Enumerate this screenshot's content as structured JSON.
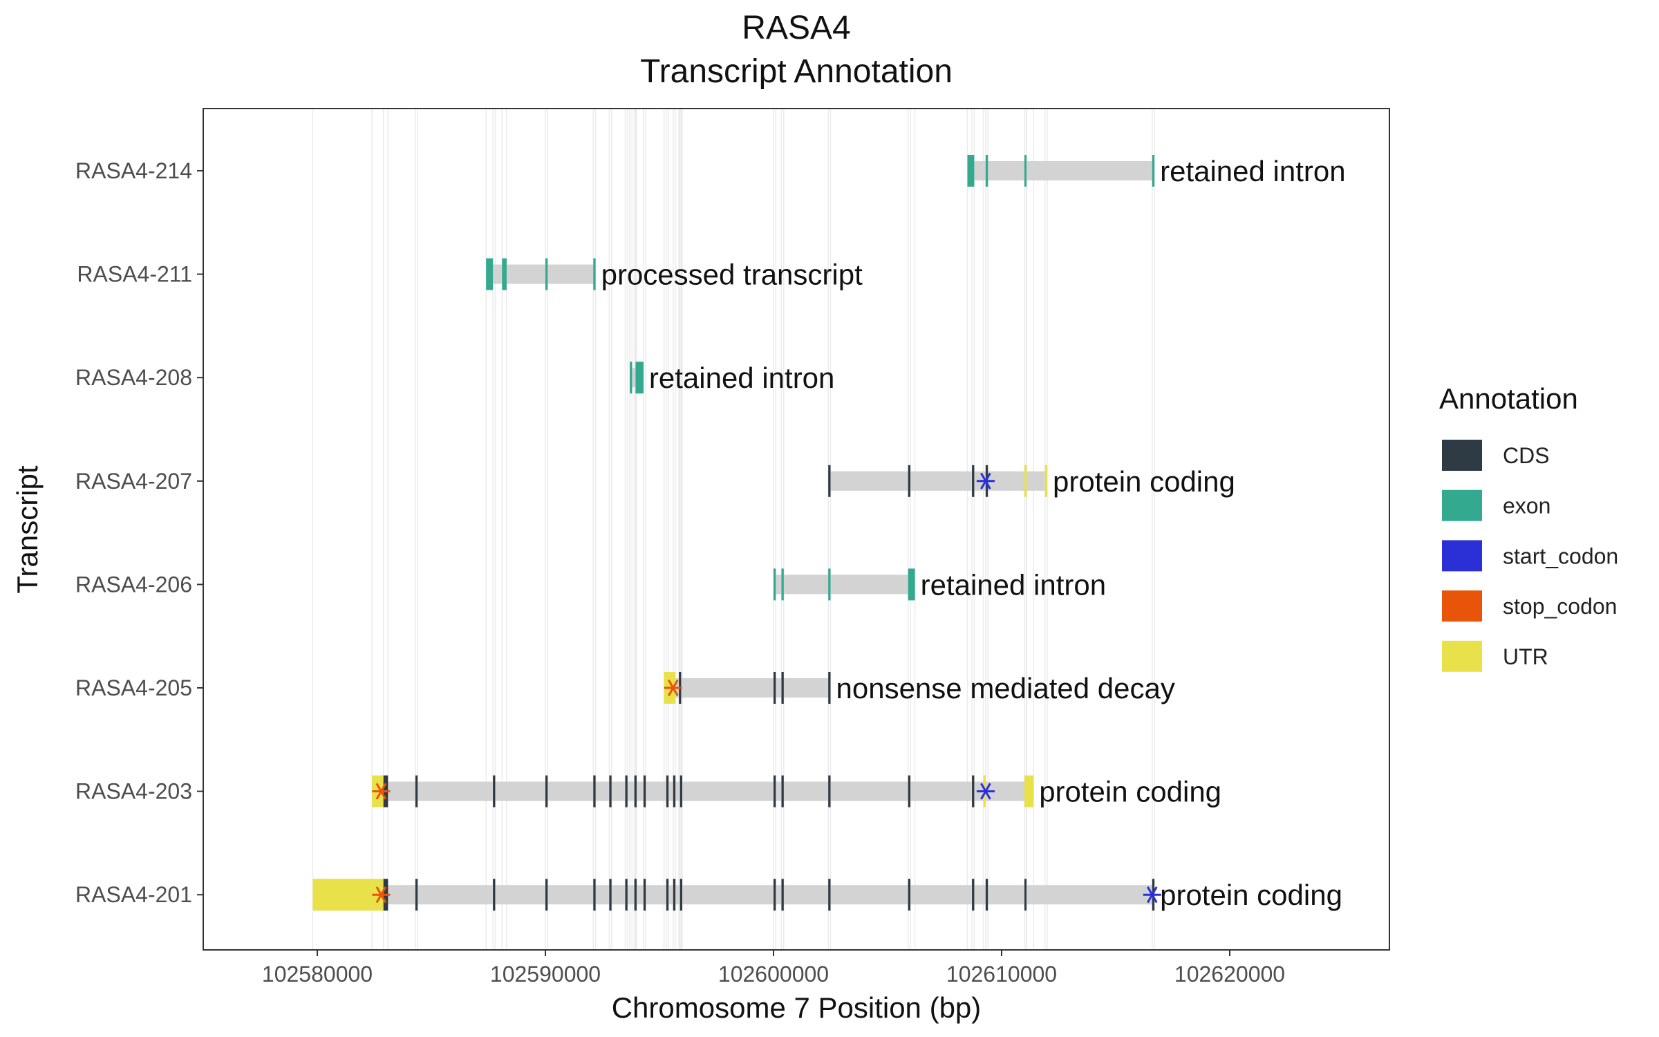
{
  "chart_data": {
    "type": "gene-track",
    "title": [
      "RASA4",
      "Transcript Annotation"
    ],
    "xlabel": "Chromosome 7 Position (bp)",
    "ylabel": "Transcript",
    "xlim": [
      102575000,
      102627000
    ],
    "x_ticks": [
      102580000,
      102590000,
      102600000,
      102610000,
      102620000
    ],
    "x_tick_labels": [
      "102580000",
      "102590000",
      "102600000",
      "102610000",
      "102620000"
    ],
    "grid": "vertical lines at feature boundaries",
    "legend": {
      "title": "Annotation",
      "placement": "right",
      "entries": [
        {
          "name": "CDS",
          "color": "#2f3b44"
        },
        {
          "name": "exon",
          "color": "#33a98f"
        },
        {
          "name": "start_codon",
          "color": "#2b2fd6"
        },
        {
          "name": "stop_codon",
          "color": "#e8540a"
        },
        {
          "name": "UTR",
          "color": "#e9e14a"
        }
      ]
    },
    "intron_color": "#d3d3d3",
    "transcripts": [
      {
        "name": "RASA4-214",
        "biotype_label": "retained intron",
        "start": 102608500,
        "end": 102616700,
        "features": [
          {
            "type": "exon",
            "start": 102608500,
            "end": 102608800
          },
          {
            "type": "exon",
            "start": 102609300,
            "end": 102609400
          },
          {
            "type": "exon",
            "start": 102611000,
            "end": 102611080
          },
          {
            "type": "exon",
            "start": 102616600,
            "end": 102616700
          }
        ],
        "markers": []
      },
      {
        "name": "RASA4-211",
        "biotype_label": "processed transcript",
        "start": 102587400,
        "end": 102592200,
        "features": [
          {
            "type": "exon",
            "start": 102587400,
            "end": 102587700
          },
          {
            "type": "exon",
            "start": 102588100,
            "end": 102588300
          },
          {
            "type": "exon",
            "start": 102590000,
            "end": 102590100
          },
          {
            "type": "exon",
            "start": 102592100,
            "end": 102592200
          }
        ],
        "markers": []
      },
      {
        "name": "RASA4-208",
        "biotype_label": "retained intron",
        "start": 102593700,
        "end": 102594300,
        "features": [
          {
            "type": "exon",
            "start": 102593700,
            "end": 102593800
          },
          {
            "type": "exon",
            "start": 102593950,
            "end": 102594300
          }
        ],
        "markers": []
      },
      {
        "name": "RASA4-207",
        "biotype_label": "protein coding",
        "start": 102602400,
        "end": 102612000,
        "features": [
          {
            "type": "CDS",
            "start": 102602400,
            "end": 102602500
          },
          {
            "type": "CDS",
            "start": 102605900,
            "end": 102606000
          },
          {
            "type": "CDS",
            "start": 102608700,
            "end": 102608800
          },
          {
            "type": "CDS",
            "start": 102609300,
            "end": 102609400
          },
          {
            "type": "UTR",
            "start": 102611000,
            "end": 102611100
          },
          {
            "type": "UTR",
            "start": 102611900,
            "end": 102612000
          }
        ],
        "markers": [
          {
            "type": "start_codon",
            "pos": 102609300
          }
        ]
      },
      {
        "name": "RASA4-206",
        "biotype_label": "retained intron",
        "start": 102600000,
        "end": 102606200,
        "features": [
          {
            "type": "exon",
            "start": 102600000,
            "end": 102600100
          },
          {
            "type": "exon",
            "start": 102600350,
            "end": 102600450
          },
          {
            "type": "exon",
            "start": 102602400,
            "end": 102602500
          },
          {
            "type": "exon",
            "start": 102605900,
            "end": 102606200
          }
        ],
        "markers": []
      },
      {
        "name": "RASA4-205",
        "biotype_label": "nonsense mediated decay",
        "start": 102595200,
        "end": 102602500,
        "features": [
          {
            "type": "UTR",
            "start": 102595200,
            "end": 102595700
          },
          {
            "type": "CDS",
            "start": 102595850,
            "end": 102595950
          },
          {
            "type": "CDS",
            "start": 102600000,
            "end": 102600100
          },
          {
            "type": "CDS",
            "start": 102600350,
            "end": 102600450
          },
          {
            "type": "CDS",
            "start": 102602400,
            "end": 102602500
          }
        ],
        "markers": [
          {
            "type": "stop_codon",
            "pos": 102595600
          }
        ]
      },
      {
        "name": "RASA4-203",
        "biotype_label": "protein coding",
        "start": 102582400,
        "end": 102611400,
        "features": [
          {
            "type": "UTR",
            "start": 102582400,
            "end": 102582900
          },
          {
            "type": "CDS",
            "start": 102582900,
            "end": 102583100
          },
          {
            "type": "CDS",
            "start": 102584300,
            "end": 102584400
          },
          {
            "type": "CDS",
            "start": 102587700,
            "end": 102587800
          },
          {
            "type": "CDS",
            "start": 102590000,
            "end": 102590100
          },
          {
            "type": "CDS",
            "start": 102592100,
            "end": 102592200
          },
          {
            "type": "CDS",
            "start": 102592800,
            "end": 102592900
          },
          {
            "type": "CDS",
            "start": 102593500,
            "end": 102593600
          },
          {
            "type": "CDS",
            "start": 102593900,
            "end": 102594000
          },
          {
            "type": "CDS",
            "start": 102594300,
            "end": 102594400
          },
          {
            "type": "CDS",
            "start": 102595300,
            "end": 102595400
          },
          {
            "type": "CDS",
            "start": 102595600,
            "end": 102595700
          },
          {
            "type": "CDS",
            "start": 102595900,
            "end": 102596000
          },
          {
            "type": "CDS",
            "start": 102600000,
            "end": 102600100
          },
          {
            "type": "CDS",
            "start": 102600350,
            "end": 102600450
          },
          {
            "type": "CDS",
            "start": 102602400,
            "end": 102602500
          },
          {
            "type": "CDS",
            "start": 102605900,
            "end": 102606000
          },
          {
            "type": "CDS",
            "start": 102608700,
            "end": 102608800
          },
          {
            "type": "UTR",
            "start": 102609200,
            "end": 102609300
          },
          {
            "type": "UTR",
            "start": 102611000,
            "end": 102611400
          }
        ],
        "markers": [
          {
            "type": "stop_codon",
            "pos": 102582800
          },
          {
            "type": "start_codon",
            "pos": 102609300
          }
        ]
      },
      {
        "name": "RASA4-201",
        "biotype_label": "protein coding",
        "start": 102579800,
        "end": 102616700,
        "features": [
          {
            "type": "UTR",
            "start": 102579800,
            "end": 102582900
          },
          {
            "type": "CDS",
            "start": 102582900,
            "end": 102583100
          },
          {
            "type": "CDS",
            "start": 102584300,
            "end": 102584400
          },
          {
            "type": "CDS",
            "start": 102587700,
            "end": 102587800
          },
          {
            "type": "CDS",
            "start": 102590000,
            "end": 102590100
          },
          {
            "type": "CDS",
            "start": 102592100,
            "end": 102592200
          },
          {
            "type": "CDS",
            "start": 102592800,
            "end": 102592900
          },
          {
            "type": "CDS",
            "start": 102593500,
            "end": 102593600
          },
          {
            "type": "CDS",
            "start": 102593900,
            "end": 102594000
          },
          {
            "type": "CDS",
            "start": 102594300,
            "end": 102594400
          },
          {
            "type": "CDS",
            "start": 102595300,
            "end": 102595400
          },
          {
            "type": "CDS",
            "start": 102595600,
            "end": 102595700
          },
          {
            "type": "CDS",
            "start": 102595900,
            "end": 102596000
          },
          {
            "type": "CDS",
            "start": 102600000,
            "end": 102600100
          },
          {
            "type": "CDS",
            "start": 102600350,
            "end": 102600450
          },
          {
            "type": "CDS",
            "start": 102602400,
            "end": 102602500
          },
          {
            "type": "CDS",
            "start": 102605900,
            "end": 102606000
          },
          {
            "type": "CDS",
            "start": 102608700,
            "end": 102608800
          },
          {
            "type": "CDS",
            "start": 102609300,
            "end": 102609400
          },
          {
            "type": "CDS",
            "start": 102611000,
            "end": 102611080
          },
          {
            "type": "CDS",
            "start": 102616600,
            "end": 102616700
          }
        ],
        "markers": [
          {
            "type": "stop_codon",
            "pos": 102582800
          },
          {
            "type": "start_codon",
            "pos": 102616600
          }
        ]
      }
    ]
  }
}
